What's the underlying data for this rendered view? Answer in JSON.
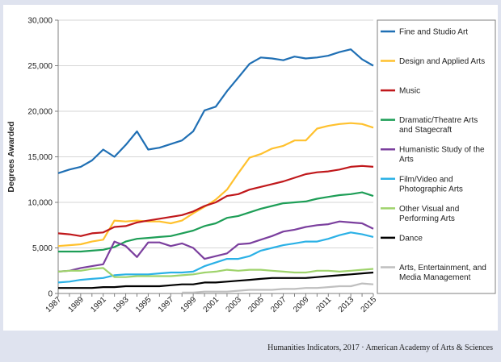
{
  "source_note": "Humanities Indicators, 2017 · American Academy of Arts & Sciences",
  "colors": {
    "panel_background": "#dfe3ef",
    "plot_background": "#ffffff",
    "grid": "#d6d6d6",
    "axis": "#7f7f7f"
  },
  "chart_data": {
    "type": "line",
    "title": "",
    "xlabel": "",
    "ylabel": "Degrees Awarded",
    "x": [
      1987,
      1988,
      1989,
      1990,
      1991,
      1992,
      1993,
      1994,
      1995,
      1996,
      1997,
      1998,
      1999,
      2000,
      2001,
      2002,
      2003,
      2004,
      2005,
      2006,
      2007,
      2008,
      2009,
      2010,
      2011,
      2012,
      2013,
      2014,
      2015
    ],
    "x_tick_labels": [
      "1987",
      "1989",
      "1991",
      "1993",
      "1995",
      "1997",
      "1999",
      "2001",
      "2003",
      "2005",
      "2007",
      "2009",
      "2011",
      "2013",
      "2015"
    ],
    "ylim": [
      0,
      30000
    ],
    "y_tick_labels": [
      "0",
      "5,000",
      "10,000",
      "15,000",
      "20,000",
      "25,000",
      "30,000"
    ],
    "grid": "horizontal",
    "legend_position": "right",
    "series": [
      {
        "name": "Fine and Studio Art",
        "color": "#1f6fb4",
        "values": [
          13200,
          13600,
          13900,
          14600,
          15800,
          15000,
          16300,
          17800,
          15800,
          16000,
          16400,
          16800,
          17800,
          20100,
          20500,
          22200,
          23700,
          25200,
          25900,
          25800,
          25600,
          26000,
          25800,
          25900,
          26100,
          26500,
          26800,
          25700,
          25000
        ]
      },
      {
        "name": "Design and Applied Arts",
        "color": "#ffc12e",
        "values": [
          5200,
          5300,
          5400,
          5700,
          5900,
          8000,
          7900,
          8000,
          7900,
          7900,
          7700,
          8000,
          8800,
          9500,
          10300,
          11400,
          13200,
          14900,
          15300,
          15900,
          16200,
          16800,
          16800,
          18100,
          18400,
          18600,
          18700,
          18600,
          18200
        ]
      },
      {
        "name": "Music",
        "color": "#c0181b",
        "values": [
          6600,
          6500,
          6300,
          6600,
          6700,
          7300,
          7400,
          7800,
          8000,
          8200,
          8400,
          8600,
          9000,
          9600,
          10000,
          10700,
          10900,
          11400,
          11700,
          12000,
          12300,
          12700,
          13100,
          13300,
          13400,
          13600,
          13900,
          14000,
          13900
        ]
      },
      {
        "name": "Dramatic/Theatre Arts and Stagecraft",
        "color": "#1e9e57",
        "values": [
          4600,
          4600,
          4600,
          4700,
          4800,
          5100,
          5700,
          6000,
          6100,
          6200,
          6300,
          6600,
          6900,
          7400,
          7700,
          8300,
          8500,
          8900,
          9300,
          9600,
          9900,
          10000,
          10100,
          10400,
          10600,
          10800,
          10900,
          11100,
          10700
        ]
      },
      {
        "name": "Humanistic Study of the Arts",
        "color": "#7b3f9e",
        "values": [
          2400,
          2500,
          2800,
          3000,
          3200,
          5700,
          5200,
          4000,
          5600,
          5600,
          5200,
          5500,
          5000,
          3800,
          4100,
          4400,
          5400,
          5500,
          5900,
          6300,
          6800,
          7000,
          7300,
          7500,
          7600,
          7900,
          7800,
          7700,
          7100
        ]
      },
      {
        "name": "Film/Video and Photographic Arts",
        "color": "#2bb1e6",
        "values": [
          1200,
          1300,
          1500,
          1600,
          1700,
          2000,
          2100,
          2100,
          2100,
          2200,
          2300,
          2300,
          2400,
          3000,
          3400,
          3800,
          3800,
          4100,
          4700,
          5000,
          5300,
          5500,
          5700,
          5700,
          6000,
          6400,
          6700,
          6500,
          6200
        ]
      },
      {
        "name": "Other Visual and Performing Arts",
        "color": "#9fd36c",
        "values": [
          2400,
          2500,
          2500,
          2700,
          2800,
          1800,
          1800,
          1900,
          1900,
          1900,
          1900,
          2000,
          2100,
          2300,
          2400,
          2600,
          2500,
          2600,
          2600,
          2500,
          2400,
          2300,
          2300,
          2500,
          2500,
          2400,
          2500,
          2600,
          2700
        ]
      },
      {
        "name": "Dance",
        "color": "#000000",
        "values": [
          600,
          600,
          600,
          600,
          700,
          700,
          800,
          800,
          800,
          800,
          900,
          1000,
          1000,
          1200,
          1200,
          1300,
          1400,
          1500,
          1600,
          1700,
          1700,
          1700,
          1700,
          1800,
          1900,
          2000,
          2100,
          2200,
          2300
        ]
      },
      {
        "name": "Arts, Entertainment, and Media Management",
        "color": "#bfbfbf",
        "values": [
          null,
          null,
          null,
          null,
          null,
          null,
          null,
          null,
          null,
          null,
          null,
          100,
          100,
          200,
          200,
          200,
          300,
          400,
          400,
          400,
          500,
          500,
          600,
          600,
          700,
          800,
          800,
          1100,
          1000
        ]
      }
    ]
  }
}
